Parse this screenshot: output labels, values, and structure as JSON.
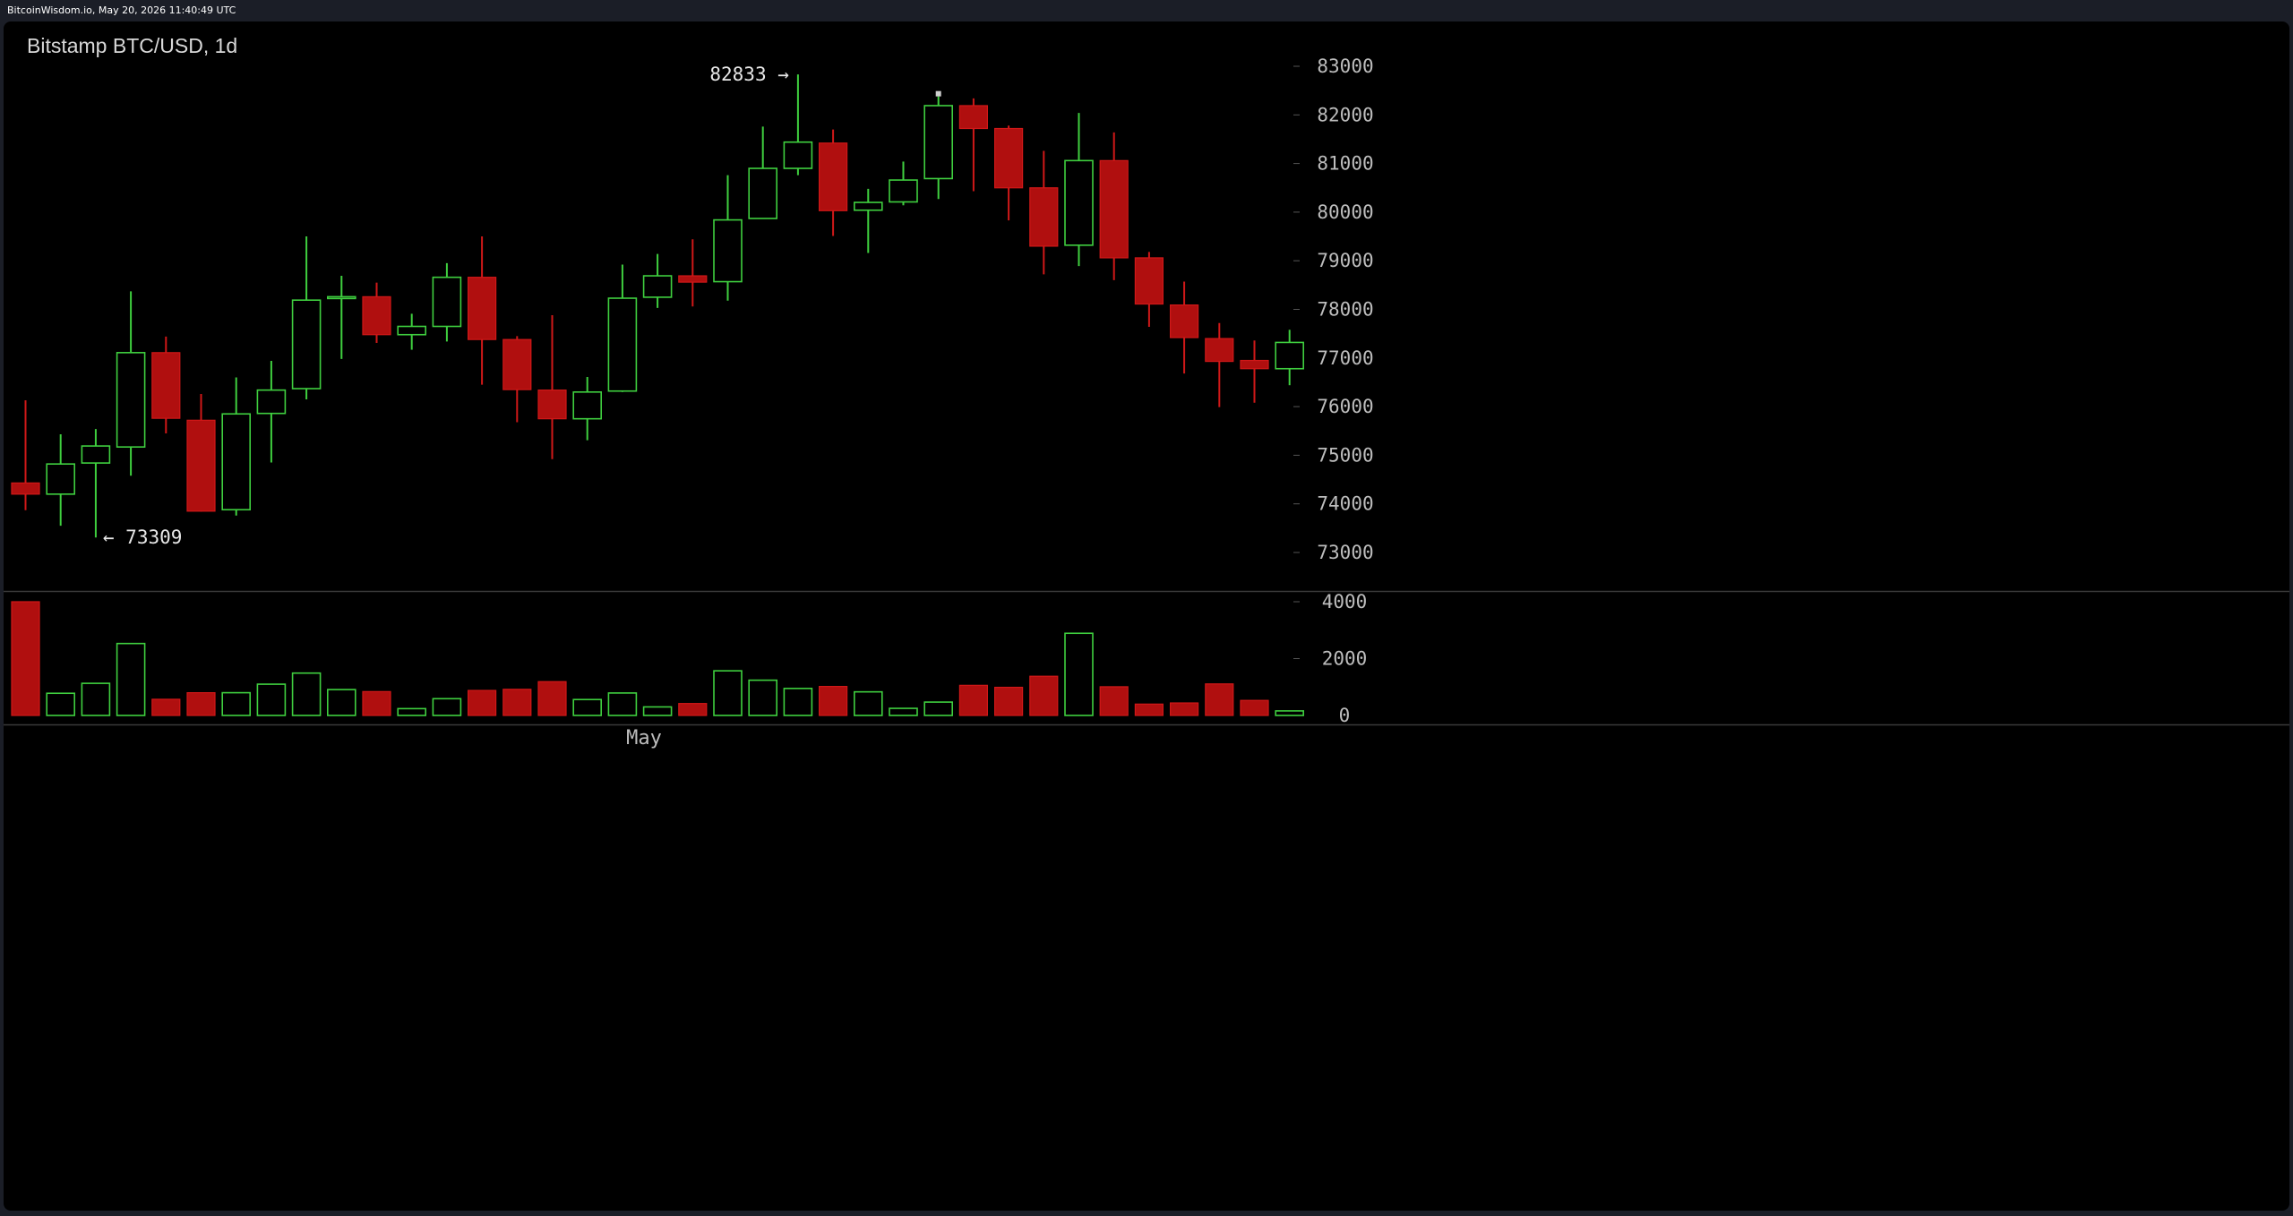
{
  "header": {
    "watermark": "BitcoinWisdom.io, May 20, 2026 11:40:49 UTC"
  },
  "chart_data": [
    {
      "type": "candlestick",
      "title": "Bitstamp BTC/USD, 1d",
      "x_tick_labels": [
        "May"
      ],
      "y_tick_labels": [
        "73000",
        "74000",
        "75000",
        "76000",
        "77000",
        "78000",
        "79000",
        "80000",
        "81000",
        "82000",
        "83000"
      ],
      "ylim": [
        72400,
        83600
      ],
      "annotations": [
        {
          "text": "82833 →",
          "value": 82833
        },
        {
          "text": "← 73309",
          "value": 73309
        }
      ],
      "colors": {
        "up": "#3fcf3f",
        "down": "#b00f0f",
        "down_border": "#d01818"
      },
      "candles": [
        {
          "o": 74430,
          "h": 76130,
          "l": 73870,
          "c": 74200
        },
        {
          "o": 74200,
          "h": 75430,
          "l": 73550,
          "c": 74820
        },
        {
          "o": 74840,
          "h": 75540,
          "l": 73309,
          "c": 75190
        },
        {
          "o": 75170,
          "h": 78370,
          "l": 74580,
          "c": 77110
        },
        {
          "o": 77110,
          "h": 77440,
          "l": 75450,
          "c": 75760
        },
        {
          "o": 75720,
          "h": 76260,
          "l": 73840,
          "c": 73850
        },
        {
          "o": 73880,
          "h": 76600,
          "l": 73760,
          "c": 75850
        },
        {
          "o": 75860,
          "h": 76940,
          "l": 74850,
          "c": 76340
        },
        {
          "o": 76370,
          "h": 79500,
          "l": 76150,
          "c": 78190
        },
        {
          "o": 78260,
          "h": 78690,
          "l": 76980,
          "c": 78260
        },
        {
          "o": 78260,
          "h": 78550,
          "l": 77310,
          "c": 77480
        },
        {
          "o": 77480,
          "h": 77910,
          "l": 77170,
          "c": 77650
        },
        {
          "o": 77650,
          "h": 78950,
          "l": 77340,
          "c": 78660
        },
        {
          "o": 78660,
          "h": 79500,
          "l": 76450,
          "c": 77380
        },
        {
          "o": 77380,
          "h": 77450,
          "l": 75680,
          "c": 76350
        },
        {
          "o": 76340,
          "h": 77880,
          "l": 74920,
          "c": 75750
        },
        {
          "o": 75750,
          "h": 76610,
          "l": 75310,
          "c": 76300
        },
        {
          "o": 76320,
          "h": 78920,
          "l": 76300,
          "c": 78230
        },
        {
          "o": 78250,
          "h": 79140,
          "l": 78030,
          "c": 78690
        },
        {
          "o": 78690,
          "h": 79440,
          "l": 78060,
          "c": 78560
        },
        {
          "o": 78570,
          "h": 80760,
          "l": 78180,
          "c": 79840
        },
        {
          "o": 79870,
          "h": 81760,
          "l": 79860,
          "c": 80900
        },
        {
          "o": 80900,
          "h": 82833,
          "l": 80760,
          "c": 81440
        },
        {
          "o": 81420,
          "h": 81700,
          "l": 79510,
          "c": 80030
        },
        {
          "o": 80040,
          "h": 80480,
          "l": 79160,
          "c": 80200
        },
        {
          "o": 80210,
          "h": 81040,
          "l": 80140,
          "c": 80660
        },
        {
          "o": 80690,
          "h": 82380,
          "l": 80270,
          "c": 82190
        },
        {
          "o": 82190,
          "h": 82340,
          "l": 80430,
          "c": 81720
        },
        {
          "o": 81720,
          "h": 81780,
          "l": 79830,
          "c": 80500
        },
        {
          "o": 80500,
          "h": 81260,
          "l": 78720,
          "c": 79300
        },
        {
          "o": 79320,
          "h": 82040,
          "l": 78890,
          "c": 81060
        },
        {
          "o": 81060,
          "h": 81640,
          "l": 78600,
          "c": 79060
        },
        {
          "o": 79060,
          "h": 79180,
          "l": 77640,
          "c": 78110
        },
        {
          "o": 78090,
          "h": 78570,
          "l": 76680,
          "c": 77420
        },
        {
          "o": 77400,
          "h": 77720,
          "l": 75990,
          "c": 76930
        },
        {
          "o": 76950,
          "h": 77360,
          "l": 76080,
          "c": 76780
        },
        {
          "o": 76780,
          "h": 77580,
          "l": 76440,
          "c": 77320
        }
      ]
    },
    {
      "type": "bar",
      "title": "",
      "y_tick_labels": [
        "0",
        "2000",
        "4000"
      ],
      "ylim": [
        0,
        4200
      ],
      "volumes": [
        4000,
        780,
        1130,
        2530,
        570,
        800,
        800,
        1100,
        1490,
        910,
        840,
        240,
        590,
        880,
        920,
        1190,
        560,
        790,
        300,
        420,
        1570,
        1240,
        950,
        1020,
        830,
        250,
        470,
        1060,
        990,
        1380,
        2890,
        1010,
        400,
        440,
        1110,
        530,
        160
      ]
    }
  ]
}
